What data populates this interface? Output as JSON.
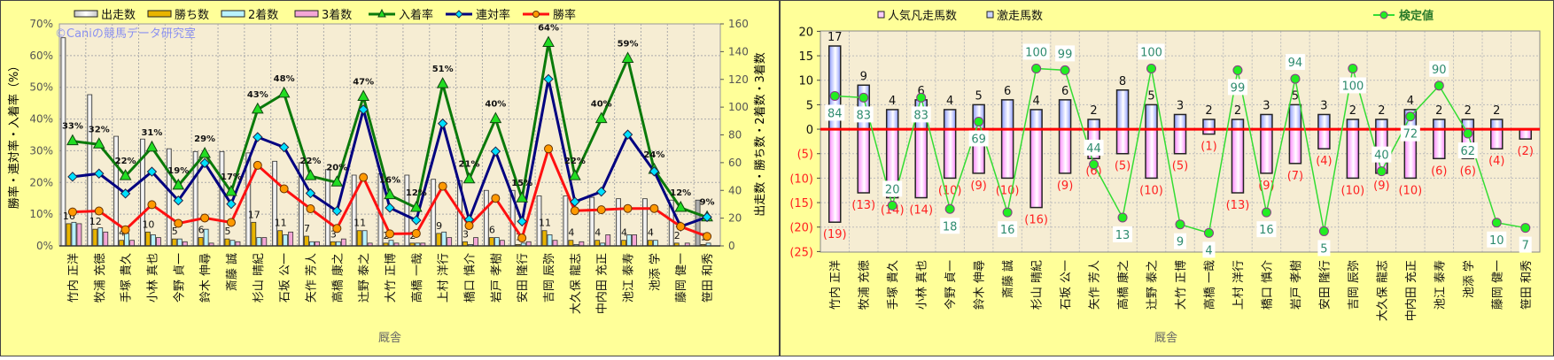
{
  "colors": {
    "panel_bg": "#ffff99",
    "plot_bg": "#f6edd3",
    "runs": "#f4f4f4",
    "wins": "#e8b400",
    "second": "#b8f2ff",
    "third": "#f4a6d6",
    "place_rate": "#0a7a0a",
    "place_marker": "#22dd22",
    "quinella_rate": "#000080",
    "quinella_marker": "#00e0ff",
    "win_rate": "#ff1010",
    "win_marker": "#ff9900",
    "upset_bar": "#8f9cff",
    "flop_bar": "#ff99ff",
    "zero_line": "#ff0000",
    "test_line": "#33dd33",
    "test_label": "#2e8b6e"
  },
  "chart_data": [
    {
      "type": "bar+line",
      "title": "",
      "watermark": "©Caniの競馬データ研究室",
      "xlabel": "厩舎",
      "ylabel": "勝率・連対率・入着率（%）",
      "y2label": "出走数・勝ち数・2着数・3着数",
      "ylim": [
        0,
        70
      ],
      "y2lim": [
        0,
        160
      ],
      "yticks": [
        "0%",
        "10%",
        "20%",
        "30%",
        "40%",
        "50%",
        "60%",
        "70%"
      ],
      "y2ticks": [
        "0",
        "20",
        "40",
        "60",
        "80",
        "100",
        "120",
        "140",
        "160"
      ],
      "grid": true,
      "legend": "top",
      "categories": [
        "竹内 正洋",
        "牧浦 充徳",
        "手塚 貴久",
        "小林 真也",
        "今野 貞一",
        "鈴木 伸尋",
        "斎藤 誠",
        "杉山 晴紀",
        "石坂 公一",
        "矢作 芳人",
        "高橋 康之",
        "辻野 泰之",
        "大竹 正博",
        "高橋 一哉",
        "上村 洋行",
        "橋口 慎介",
        "岩戸 孝樹",
        "安田 隆行",
        "吉岡 辰弥",
        "大久保 龍志",
        "中内田 充正",
        "池江 泰寿",
        "池添 学",
        "藤岡 健一",
        "笹田 和秀"
      ],
      "series": [
        {
          "name": "出走数",
          "kind": "bar",
          "axis": "right",
          "values": [
            150,
            109,
            79,
            77,
            70,
            68,
            68,
            67,
            61,
            60,
            55,
            51,
            52,
            51,
            48,
            47,
            40,
            40,
            36,
            36,
            35,
            34,
            34,
            33,
            33
          ]
        },
        {
          "name": "勝ち数",
          "kind": "bar",
          "axis": "right",
          "values": [
            16,
            12,
            4,
            10,
            5,
            6,
            5,
            17,
            11,
            7,
            3,
            11,
            2,
            2,
            9,
            3,
            6,
            1,
            11,
            4,
            4,
            4,
            4,
            2,
            1
          ],
          "labels": [
            "16",
            "12",
            "4",
            "10",
            "5",
            "6",
            "5",
            "17",
            "11",
            "7",
            "3",
            "11",
            "2",
            "2",
            "9",
            "3",
            "6",
            "1",
            "11",
            "4",
            "4",
            "4",
            "4",
            "2",
            "1"
          ]
        },
        {
          "name": "2着数",
          "kind": "bar",
          "axis": "right",
          "values": [
            17,
            13,
            9,
            8,
            5,
            12,
            4,
            6,
            8,
            3,
            3,
            11,
            4,
            2,
            10,
            1,
            6,
            2,
            8,
            1,
            2,
            8,
            4,
            0,
            2
          ]
        },
        {
          "name": "3着数",
          "kind": "bar",
          "axis": "right",
          "values": [
            16,
            10,
            4,
            6,
            3,
            2,
            3,
            6,
            10,
            3,
            5,
            2,
            2,
            2,
            6,
            6,
            4,
            3,
            4,
            3,
            8,
            8,
            0,
            2,
            0
          ]
        },
        {
          "name": "入着率",
          "kind": "line",
          "axis": "left",
          "values": [
            33,
            32,
            22,
            31,
            19,
            29,
            17,
            43,
            48,
            22,
            20,
            47,
            16,
            12,
            51,
            21,
            40,
            15,
            64,
            22,
            40,
            59,
            24,
            12,
            9
          ],
          "labels": [
            "33%",
            "32%",
            "22%",
            "31%",
            "19%",
            "29%",
            "17%",
            "43%",
            "48%",
            "22%",
            "20%",
            "47%",
            "16%",
            "12%",
            "51%",
            "21%",
            "40%",
            "15%",
            "64%",
            "22%",
            "40%",
            "59%",
            "24%",
            "12%",
            "9%"
          ]
        },
        {
          "name": "連対率",
          "kind": "line",
          "axis": "left",
          "values": [
            21.8,
            22.8,
            16.5,
            23.4,
            14.3,
            26.1,
            13.2,
            34.3,
            31.1,
            16.6,
            11.0,
            43.0,
            12.0,
            8.1,
            38.6,
            8.3,
            29.8,
            7.7,
            52.6,
            13.9,
            17.1,
            35.1,
            23.5,
            6.1,
            9.1
          ]
        },
        {
          "name": "勝率",
          "kind": "line",
          "axis": "left",
          "values": [
            10.7,
            11.0,
            5.1,
            13.0,
            7.1,
            8.8,
            7.4,
            25.4,
            18.0,
            11.7,
            5.5,
            21.6,
            3.8,
            3.9,
            18.8,
            6.4,
            15.0,
            2.5,
            30.6,
            11.1,
            11.4,
            11.8,
            11.8,
            6.1,
            3.0
          ]
        }
      ]
    },
    {
      "type": "bar+line",
      "title": "",
      "xlabel": "厩舎",
      "ylim": [
        -25,
        20
      ],
      "yticks": [
        "(25)",
        "(20)",
        "(15)",
        "(10)",
        "(5)",
        "0",
        "5",
        "10",
        "15",
        "20"
      ],
      "grid": true,
      "legend": "top",
      "categories": [
        "竹内 正洋",
        "牧浦 充徳",
        "手塚 貴久",
        "小林 真也",
        "今野 貞一",
        "鈴木 伸尋",
        "斎藤 誠",
        "杉山 晴紀",
        "石坂 公一",
        "矢作 芳人",
        "高橋 康之",
        "辻野 泰之",
        "大竹 正博",
        "高橋 一哉",
        "上村 洋行",
        "橋口 慎介",
        "岩戸 孝樹",
        "安田 隆行",
        "吉岡 辰弥",
        "大久保 龍志",
        "中内田 充正",
        "池江 泰寿",
        "池添 学",
        "藤岡 健一",
        "笹田 和秀"
      ],
      "series": [
        {
          "name": "人気凡走馬数",
          "kind": "bar",
          "values": [
            -19,
            -13,
            -14,
            -14,
            -10,
            -9,
            -10,
            -16,
            -9,
            -6,
            -5,
            -10,
            -5,
            -1,
            -13,
            -9,
            -7,
            -4,
            -10,
            -9,
            -10,
            -6,
            -6,
            -4,
            -2
          ],
          "labels": [
            "(19)",
            "(13)",
            "(14)",
            "(14)",
            "(10)",
            "(9)",
            "(10)",
            "(16)",
            "(9)",
            "(6)",
            "(5)",
            "(10)",
            "(5)",
            "(1)",
            "(13)",
            "(9)",
            "(7)",
            "(4)",
            "(10)",
            "(9)",
            "(10)",
            "(6)",
            "(6)",
            "(4)",
            "(2)"
          ]
        },
        {
          "name": "激走馬数",
          "kind": "bar",
          "values": [
            17,
            9,
            4,
            6,
            4,
            5,
            6,
            4,
            6,
            2,
            8,
            5,
            3,
            2,
            2,
            3,
            5,
            3,
            2,
            2,
            4,
            2,
            2,
            2,
            0
          ],
          "labels": [
            "17",
            "9",
            "4",
            "6",
            "4",
            "5",
            "6",
            "4",
            "6",
            "2",
            "8",
            "5",
            "3",
            "2",
            "2",
            "3",
            "5",
            "3",
            "2",
            "2",
            "4",
            "2",
            "2",
            "2",
            ""
          ]
        },
        {
          "name": "検定値",
          "kind": "line",
          "axis": "secondary",
          "values": [
            84,
            83,
            20,
            83,
            18,
            69,
            16,
            100,
            99,
            44,
            13,
            100,
            9,
            4,
            99,
            16,
            94,
            5,
            100,
            40,
            72,
            90,
            62,
            10,
            7
          ],
          "labels": [
            "84",
            "83",
            "20",
            "83",
            "18",
            "69",
            "16",
            "100",
            "99",
            "44",
            "13",
            "100",
            "9",
            "4",
            "99",
            "16",
            "94",
            "5",
            "100",
            "40",
            "72",
            "90",
            "62",
            "10",
            "7"
          ]
        }
      ]
    }
  ]
}
